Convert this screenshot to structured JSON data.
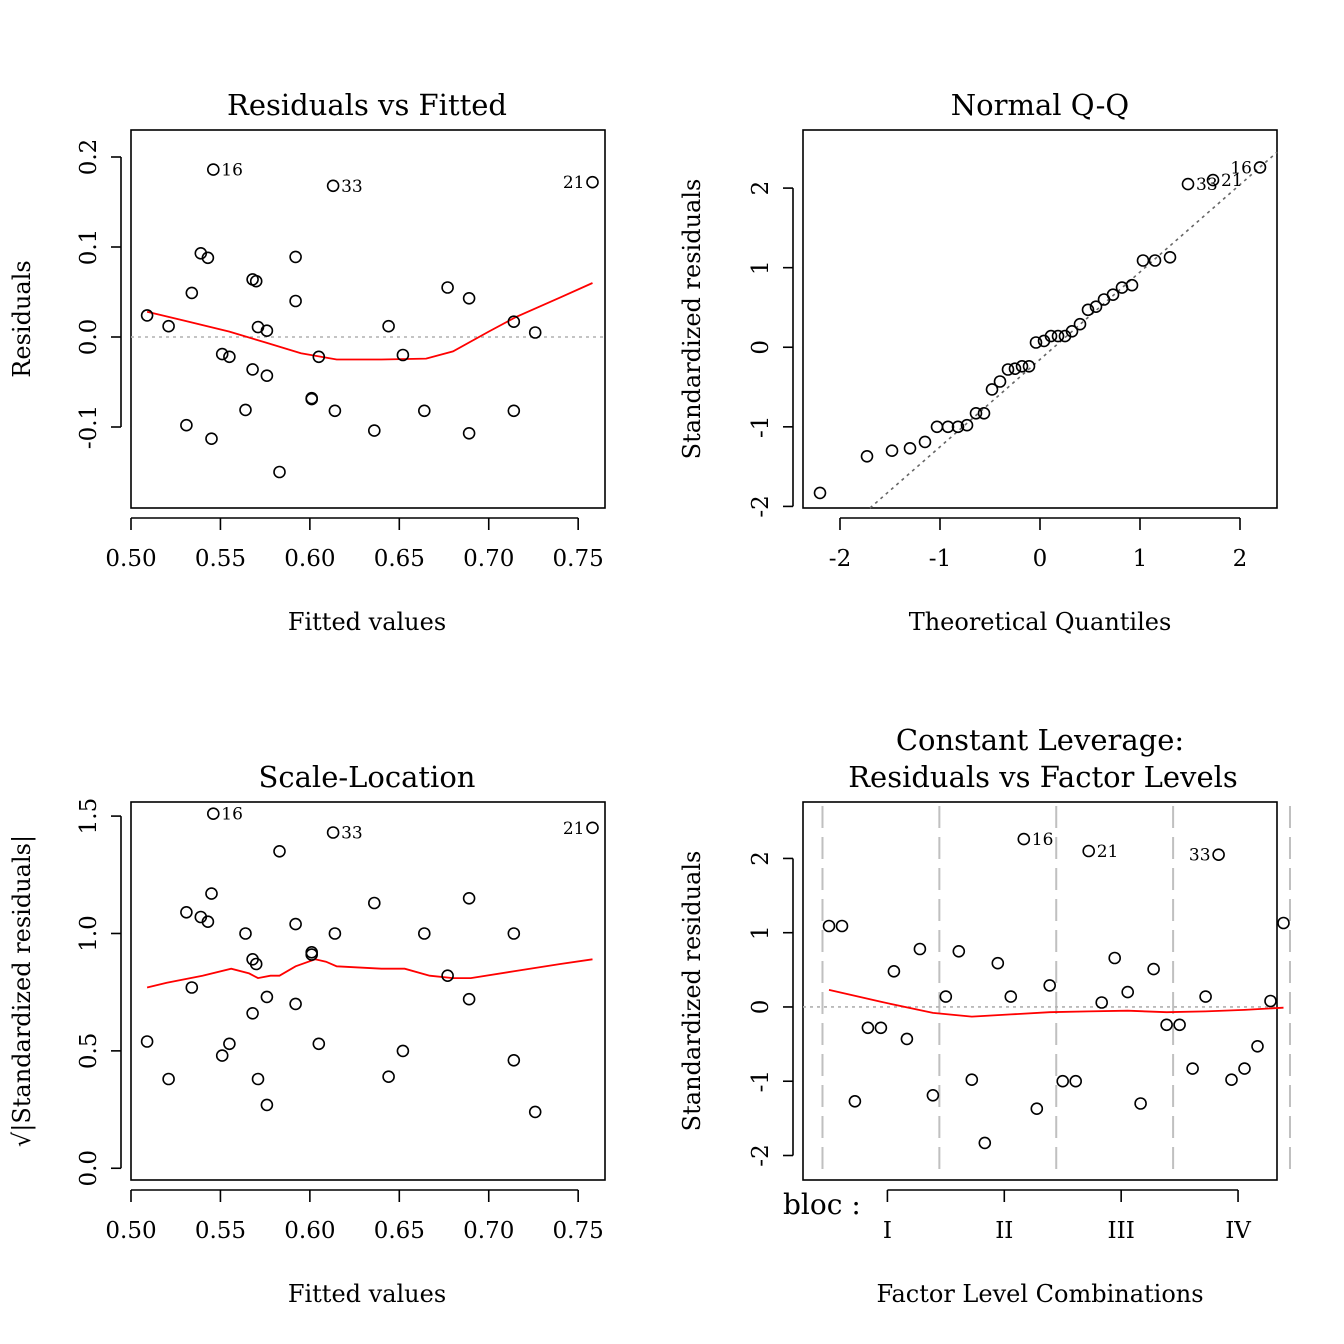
{
  "chart_data": [
    {
      "id": "p1",
      "type": "scatter",
      "title": "Residuals vs Fitted",
      "xlabel": "Fitted values",
      "ylabel": "Residuals",
      "xlim": [
        0.5,
        0.765
      ],
      "ylim": [
        -0.19,
        0.23
      ],
      "xticks": [
        0.5,
        0.55,
        0.6,
        0.65,
        0.7,
        0.75
      ],
      "xticklabels": [
        "0.50",
        "0.55",
        "0.60",
        "0.65",
        "0.70",
        "0.75"
      ],
      "yticks": [
        -0.1,
        0.0,
        0.1,
        0.2
      ],
      "yticklabels": [
        "-0.1",
        "0.0",
        "0.1",
        "0.2"
      ],
      "reference_line": {
        "style": "dotted",
        "color": "#b0b0b0",
        "y": 0
      },
      "points": [
        [
          0.509,
          0.024
        ],
        [
          0.521,
          0.012
        ],
        [
          0.531,
          -0.098
        ],
        [
          0.534,
          0.049
        ],
        [
          0.539,
          0.093
        ],
        [
          0.543,
          0.088
        ],
        [
          0.545,
          -0.113
        ],
        [
          0.546,
          0.186
        ],
        [
          0.551,
          -0.019
        ],
        [
          0.555,
          -0.022
        ],
        [
          0.564,
          -0.081
        ],
        [
          0.568,
          0.064
        ],
        [
          0.568,
          -0.036
        ],
        [
          0.57,
          0.062
        ],
        [
          0.571,
          0.011
        ],
        [
          0.576,
          0.007
        ],
        [
          0.576,
          -0.043
        ],
        [
          0.583,
          -0.15
        ],
        [
          0.592,
          0.089
        ],
        [
          0.592,
          0.04
        ],
        [
          0.601,
          -0.068
        ],
        [
          0.601,
          -0.069
        ],
        [
          0.605,
          -0.022
        ],
        [
          0.613,
          0.168
        ],
        [
          0.614,
          -0.082
        ],
        [
          0.636,
          -0.104
        ],
        [
          0.644,
          0.012
        ],
        [
          0.652,
          -0.02
        ],
        [
          0.664,
          -0.082
        ],
        [
          0.677,
          0.055
        ],
        [
          0.689,
          0.043
        ],
        [
          0.689,
          -0.107
        ],
        [
          0.714,
          0.017
        ],
        [
          0.714,
          -0.082
        ],
        [
          0.726,
          0.005
        ],
        [
          0.758,
          0.172
        ]
      ],
      "smooth_line": {
        "color": "#ff0000",
        "x": [
          0.509,
          0.53,
          0.555,
          0.575,
          0.595,
          0.615,
          0.64,
          0.665,
          0.68,
          0.7,
          0.715,
          0.74,
          0.758
        ],
        "y": [
          0.028,
          0.018,
          0.006,
          -0.006,
          -0.018,
          -0.025,
          -0.025,
          -0.024,
          -0.016,
          0.006,
          0.022,
          0.044,
          0.06
        ]
      },
      "point_labels": [
        {
          "text": "16",
          "x": 0.546,
          "y": 0.186,
          "side": "right"
        },
        {
          "text": "33",
          "x": 0.613,
          "y": 0.168,
          "side": "right"
        },
        {
          "text": "21",
          "x": 0.758,
          "y": 0.172,
          "side": "left"
        }
      ]
    },
    {
      "id": "p2",
      "type": "scatter",
      "title": "Normal Q-Q",
      "xlabel": "Theoretical Quantiles",
      "ylabel": "Standardized residuals",
      "xlim": [
        -2.37,
        2.37
      ],
      "ylim": [
        -2.02,
        2.73
      ],
      "xticks": [
        -2,
        -1,
        0,
        1,
        2
      ],
      "xticklabels": [
        "-2",
        "-1",
        "0",
        "1",
        "2"
      ],
      "yticks": [
        -2,
        -1,
        0,
        1,
        2
      ],
      "yticklabels": [
        "-2",
        "-1",
        "0",
        "1",
        "2"
      ],
      "reference_line": {
        "style": "dotted",
        "color": "#666666",
        "x": [
          -1.7,
          2.37
        ],
        "y": [
          -2.02,
          2.45
        ]
      },
      "points": [
        [
          -2.2,
          -1.83
        ],
        [
          -1.73,
          -1.37
        ],
        [
          -1.48,
          -1.3
        ],
        [
          -1.3,
          -1.27
        ],
        [
          -1.15,
          -1.19
        ],
        [
          -1.03,
          -1.0
        ],
        [
          -0.92,
          -1.0
        ],
        [
          -0.82,
          -1.0
        ],
        [
          -0.73,
          -0.98
        ],
        [
          -0.64,
          -0.83
        ],
        [
          -0.56,
          -0.83
        ],
        [
          -0.48,
          -0.53
        ],
        [
          -0.4,
          -0.43
        ],
        [
          -0.32,
          -0.28
        ],
        [
          -0.25,
          -0.27
        ],
        [
          -0.18,
          -0.24
        ],
        [
          -0.11,
          -0.24
        ],
        [
          -0.04,
          0.06
        ],
        [
          0.04,
          0.08
        ],
        [
          0.11,
          0.14
        ],
        [
          0.18,
          0.14
        ],
        [
          0.25,
          0.14
        ],
        [
          0.32,
          0.2
        ],
        [
          0.4,
          0.29
        ],
        [
          0.48,
          0.47
        ],
        [
          0.56,
          0.51
        ],
        [
          0.64,
          0.6
        ],
        [
          0.73,
          0.66
        ],
        [
          0.82,
          0.75
        ],
        [
          0.92,
          0.78
        ],
        [
          1.03,
          1.09
        ],
        [
          1.15,
          1.09
        ],
        [
          1.3,
          1.13
        ],
        [
          1.48,
          2.05
        ],
        [
          1.73,
          2.1
        ],
        [
          2.2,
          2.26
        ]
      ],
      "point_labels": [
        {
          "text": "16",
          "x": 2.2,
          "y": 2.26,
          "side": "left"
        },
        {
          "text": "21",
          "x": 1.73,
          "y": 2.1,
          "side": "right"
        },
        {
          "text": "33",
          "x": 1.48,
          "y": 2.05,
          "side": "right"
        }
      ]
    },
    {
      "id": "p3",
      "type": "scatter",
      "title": "Scale-Location",
      "xlabel": "Fitted values",
      "ylabel": "√|Standardized residuals|",
      "xlim": [
        0.5,
        0.765
      ],
      "ylim": [
        -0.05,
        1.56
      ],
      "xticks": [
        0.5,
        0.55,
        0.6,
        0.65,
        0.7,
        0.75
      ],
      "xticklabels": [
        "0.50",
        "0.55",
        "0.60",
        "0.65",
        "0.70",
        "0.75"
      ],
      "yticks": [
        0.0,
        0.5,
        1.0,
        1.5
      ],
      "yticklabels": [
        "0.0",
        "0.5",
        "1.0",
        "1.5"
      ],
      "points": [
        [
          0.509,
          0.54
        ],
        [
          0.521,
          0.38
        ],
        [
          0.531,
          1.09
        ],
        [
          0.534,
          0.77
        ],
        [
          0.539,
          1.07
        ],
        [
          0.543,
          1.05
        ],
        [
          0.545,
          1.17
        ],
        [
          0.546,
          1.51
        ],
        [
          0.551,
          0.48
        ],
        [
          0.555,
          0.53
        ],
        [
          0.564,
          1.0
        ],
        [
          0.568,
          0.89
        ],
        [
          0.568,
          0.66
        ],
        [
          0.57,
          0.87
        ],
        [
          0.571,
          0.38
        ],
        [
          0.576,
          0.27
        ],
        [
          0.576,
          0.73
        ],
        [
          0.583,
          1.35
        ],
        [
          0.592,
          1.04
        ],
        [
          0.592,
          0.7
        ],
        [
          0.601,
          0.92
        ],
        [
          0.601,
          0.91
        ],
        [
          0.605,
          0.53
        ],
        [
          0.613,
          1.43
        ],
        [
          0.614,
          1.0
        ],
        [
          0.636,
          1.13
        ],
        [
          0.644,
          0.39
        ],
        [
          0.652,
          0.5
        ],
        [
          0.664,
          1.0
        ],
        [
          0.677,
          0.82
        ],
        [
          0.689,
          1.15
        ],
        [
          0.689,
          0.72
        ],
        [
          0.714,
          0.46
        ],
        [
          0.714,
          1.0
        ],
        [
          0.726,
          0.24
        ],
        [
          0.758,
          1.45
        ]
      ],
      "smooth_line": {
        "color": "#ff0000",
        "x": [
          0.509,
          0.52,
          0.54,
          0.556,
          0.566,
          0.571,
          0.578,
          0.583,
          0.592,
          0.603,
          0.609,
          0.615,
          0.64,
          0.653,
          0.667,
          0.68,
          0.69,
          0.715,
          0.74,
          0.758
        ],
        "y": [
          0.77,
          0.79,
          0.82,
          0.85,
          0.83,
          0.81,
          0.82,
          0.82,
          0.86,
          0.89,
          0.88,
          0.86,
          0.85,
          0.85,
          0.82,
          0.81,
          0.81,
          0.84,
          0.87,
          0.89
        ]
      },
      "point_labels": [
        {
          "text": "16",
          "x": 0.546,
          "y": 1.51,
          "side": "right"
        },
        {
          "text": "33",
          "x": 0.613,
          "y": 1.43,
          "side": "right"
        },
        {
          "text": "21",
          "x": 0.758,
          "y": 1.45,
          "side": "left"
        }
      ]
    },
    {
      "id": "p4",
      "type": "scatter",
      "title": [
        "Constant Leverage:",
        "Residuals vs Factor Levels"
      ],
      "xlabel": "Factor Level Combinations",
      "ylabel": "Standardized residuals",
      "factor_prefix": "bloc :",
      "xlim": [
        0,
        36.5
      ],
      "ylim": [
        -2.33,
        2.76
      ],
      "xticks": [
        6.5,
        15.5,
        24.5,
        33.5
      ],
      "xticklabels": [
        "I",
        "II",
        "III",
        "IV"
      ],
      "yticks": [
        -2,
        -1,
        0,
        1,
        2
      ],
      "yticklabels": [
        "-2",
        "-1",
        "0",
        "1",
        "2"
      ],
      "group_boundaries": [
        1.5,
        10.5,
        19.5,
        28.5,
        37.5
      ],
      "reference_line": {
        "style": "dotted",
        "color": "#b0b0b0",
        "y": 0
      },
      "points": [
        [
          2,
          1.09
        ],
        [
          3,
          1.09
        ],
        [
          4,
          -1.27
        ],
        [
          5,
          -0.28
        ],
        [
          6,
          -0.28
        ],
        [
          7,
          0.48
        ],
        [
          8,
          -0.43
        ],
        [
          9,
          0.78
        ],
        [
          10,
          -1.19
        ],
        [
          11,
          0.14
        ],
        [
          12,
          0.75
        ],
        [
          13,
          -0.98
        ],
        [
          14,
          -1.83
        ],
        [
          15,
          0.59
        ],
        [
          16,
          0.14
        ],
        [
          17,
          2.26
        ],
        [
          18,
          -1.37
        ],
        [
          19,
          0.29
        ],
        [
          20,
          -1.0
        ],
        [
          21,
          -1.0
        ],
        [
          22,
          2.1
        ],
        [
          23,
          0.06
        ],
        [
          24,
          0.66
        ],
        [
          25,
          0.2
        ],
        [
          26,
          -1.3
        ],
        [
          27,
          0.51
        ],
        [
          28,
          -0.24
        ],
        [
          29,
          -0.24
        ],
        [
          30,
          -0.83
        ],
        [
          31,
          0.14
        ],
        [
          32,
          2.05
        ],
        [
          33,
          -0.98
        ],
        [
          34,
          -0.83
        ],
        [
          35,
          -0.53
        ],
        [
          36,
          0.08
        ],
        [
          37,
          1.13
        ]
      ],
      "smooth_line": {
        "color": "#ff0000",
        "x": [
          2,
          6,
          10,
          13,
          16,
          19,
          22,
          25,
          28,
          31,
          34,
          37
        ],
        "y": [
          0.23,
          0.07,
          -0.08,
          -0.13,
          -0.1,
          -0.07,
          -0.06,
          -0.05,
          -0.07,
          -0.06,
          -0.04,
          -0.01
        ]
      },
      "point_labels": [
        {
          "text": "16",
          "x": 17,
          "y": 2.26,
          "side": "right"
        },
        {
          "text": "21",
          "x": 22,
          "y": 2.1,
          "side": "right"
        },
        {
          "text": "33",
          "x": 32,
          "y": 2.05,
          "side": "left"
        }
      ]
    }
  ]
}
